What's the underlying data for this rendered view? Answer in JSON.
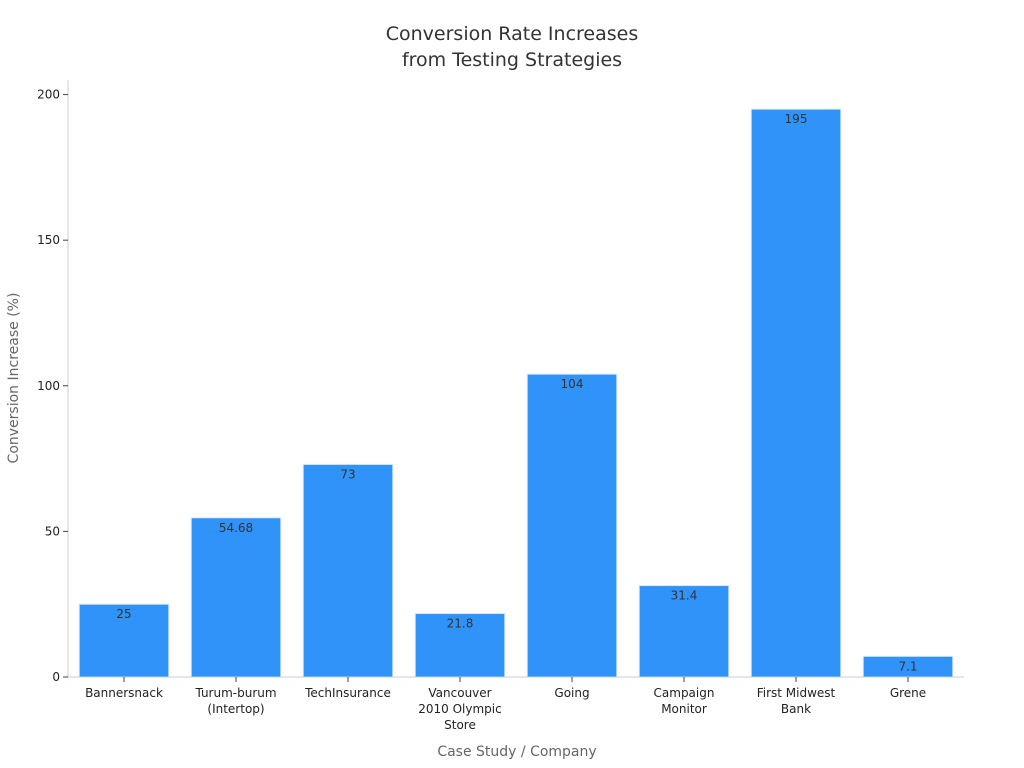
{
  "chart_data": {
    "type": "bar",
    "title": [
      "Conversion Rate Increases",
      "from Testing Strategies"
    ],
    "xlabel": "Case Study / Company",
    "ylabel": "Conversion Increase (%)",
    "ylim": [
      0,
      205
    ],
    "yticks": [
      0,
      50,
      100,
      150,
      200
    ],
    "grid": false,
    "categories": [
      [
        "Bannersnack"
      ],
      [
        "Turum-burum",
        "(Intertop)"
      ],
      [
        "TechInsurance"
      ],
      [
        "Vancouver",
        "2010 Olympic",
        "Store"
      ],
      [
        "Going"
      ],
      [
        "Campaign",
        "Monitor"
      ],
      [
        "First Midwest",
        "Bank"
      ],
      [
        "Grene"
      ]
    ],
    "values": [
      25,
      54.68,
      73,
      21.8,
      104,
      31.4,
      195,
      7.1
    ],
    "value_labels": [
      "25",
      "54.68",
      "73",
      "21.8",
      "104",
      "31.4",
      "195",
      "7.1"
    ],
    "colors": {
      "bar": "#2f93fa",
      "bar_edge": "#dce9f7",
      "axis": "#cccccc",
      "tick": "#444444"
    }
  }
}
